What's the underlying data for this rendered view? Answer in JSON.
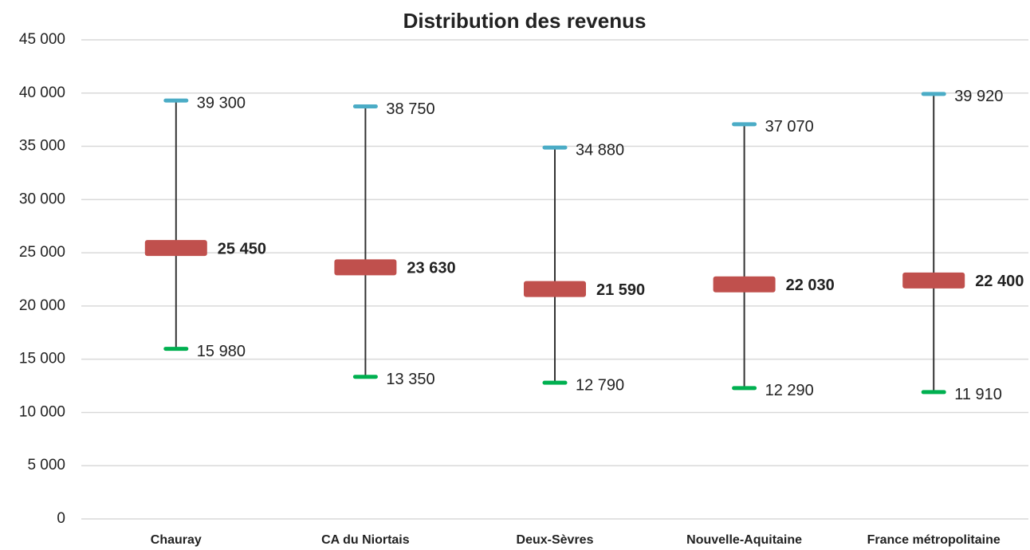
{
  "chart_data": {
    "type": "high-low-median",
    "title": "Distribution des revenus",
    "categories": [
      "Chauray",
      "CA du Niortais",
      "Deux-Sèvres",
      "Nouvelle-Aquitaine",
      "France métropolitaine"
    ],
    "series": [
      {
        "color": "#4bacc6",
        "values": [
          39300,
          38750,
          34880,
          37070,
          39920
        ],
        "value_labels": [
          "39 300",
          "38 750",
          "34 880",
          "37 070",
          "39 920"
        ]
      },
      {
        "color": "#c0504d",
        "values": [
          25450,
          23630,
          21590,
          22030,
          22400
        ],
        "value_labels": [
          "25 450",
          "23 630",
          "21 590",
          "22 030",
          "22 400"
        ]
      },
      {
        "color": "#00b050",
        "values": [
          15980,
          13350,
          12790,
          12290,
          11910
        ],
        "value_labels": [
          "15 980",
          "13 350",
          "12 790",
          "12 290",
          "11 910"
        ]
      }
    ],
    "ylim": [
      0,
      45000
    ],
    "yticks": [
      0,
      {
        "value": 5000,
        "label": "5 000"
      },
      {
        "value": 10000,
        "label": "10 000"
      },
      {
        "value": 15000,
        "label": "15 000"
      },
      {
        "value": 20000,
        "label": "20 000"
      },
      {
        "value": 25000,
        "label": "25 000"
      },
      {
        "value": 30000,
        "label": "30 000"
      },
      {
        "value": 35000,
        "label": "35 000"
      },
      {
        "value": 40000,
        "label": "40 000"
      },
      {
        "value": 45000,
        "label": "45 000"
      }
    ],
    "grid": true
  }
}
